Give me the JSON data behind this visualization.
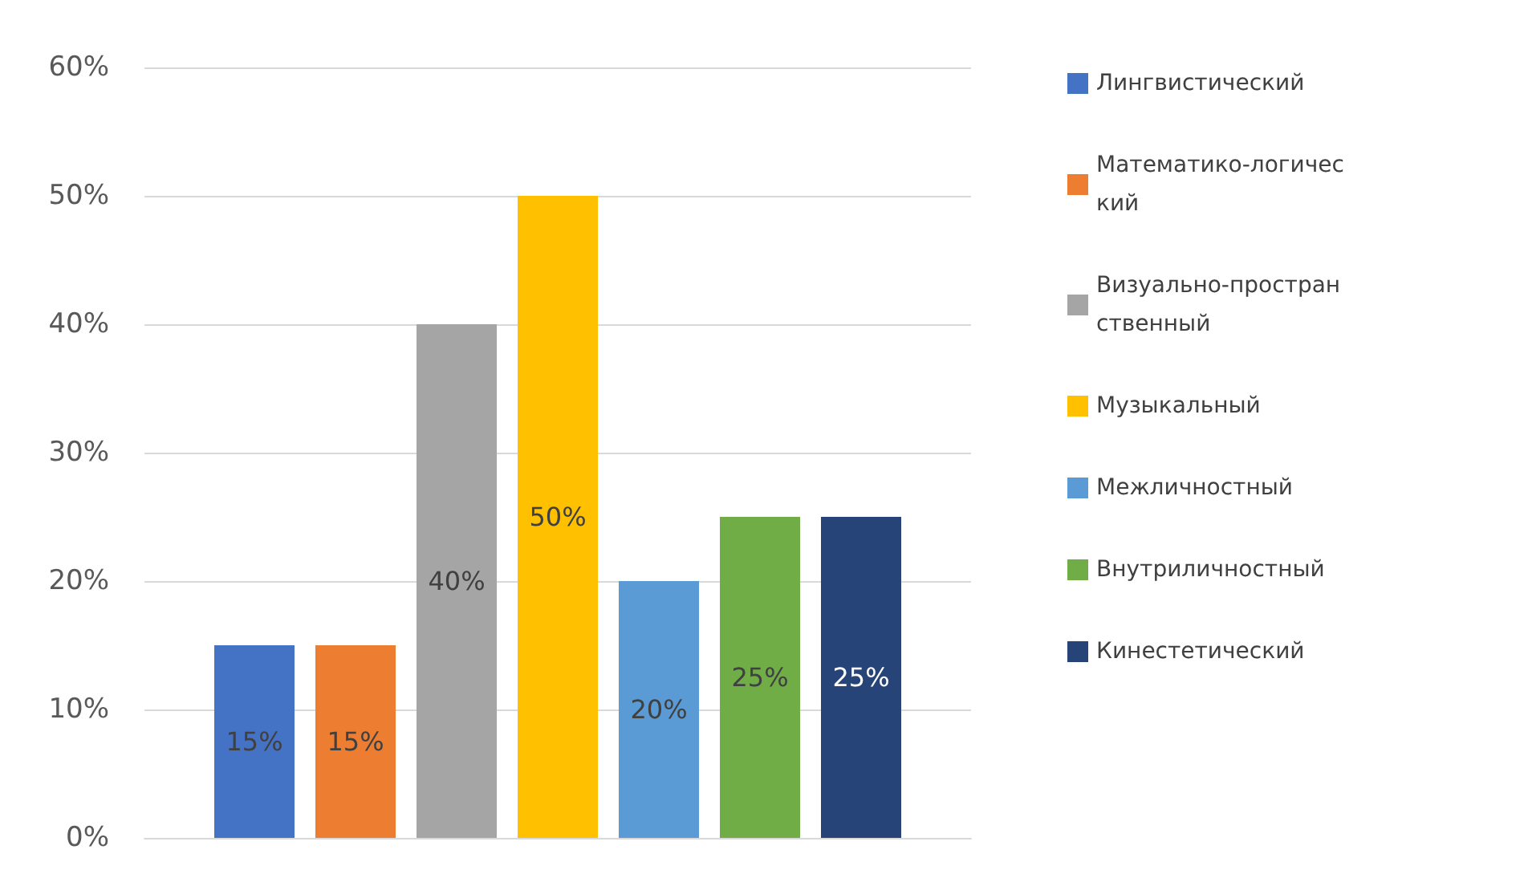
{
  "chart_data": {
    "type": "bar",
    "categories": [
      null
    ],
    "series": [
      {
        "name": "Лингвистический",
        "color": "#4472c4",
        "values": [
          15
        ],
        "value_labels": [
          "15%"
        ]
      },
      {
        "name": "Математико-логический",
        "color": "#ed7d31",
        "values": [
          15
        ],
        "value_labels": [
          "15%"
        ]
      },
      {
        "name": "Визуально-пространственный",
        "color": "#a5a5a5",
        "values": [
          40
        ],
        "value_labels": [
          "40%"
        ]
      },
      {
        "name": "Музыкальный",
        "color": "#ffc000",
        "values": [
          50
        ],
        "value_labels": [
          "50%"
        ]
      },
      {
        "name": "Межличностный",
        "color": "#5b9bd5",
        "values": [
          20
        ],
        "value_labels": [
          "20%"
        ]
      },
      {
        "name": "Внутриличностный",
        "color": "#70ad47",
        "values": [
          25
        ],
        "value_labels": [
          "25%"
        ]
      },
      {
        "name": "Кинестетический",
        "color": "#264478",
        "values": [
          25
        ],
        "value_labels": [
          "25%"
        ]
      }
    ],
    "ylim": [
      0,
      60
    ],
    "yticks": [
      {
        "value": 0,
        "label": "0%"
      },
      {
        "value": 10,
        "label": "10%"
      },
      {
        "value": 20,
        "label": "20%"
      },
      {
        "value": 30,
        "label": "30%"
      },
      {
        "value": 40,
        "label": "40%"
      },
      {
        "value": 50,
        "label": "50%"
      },
      {
        "value": 60,
        "label": "60%"
      }
    ],
    "grid": "y",
    "legend": "right"
  }
}
